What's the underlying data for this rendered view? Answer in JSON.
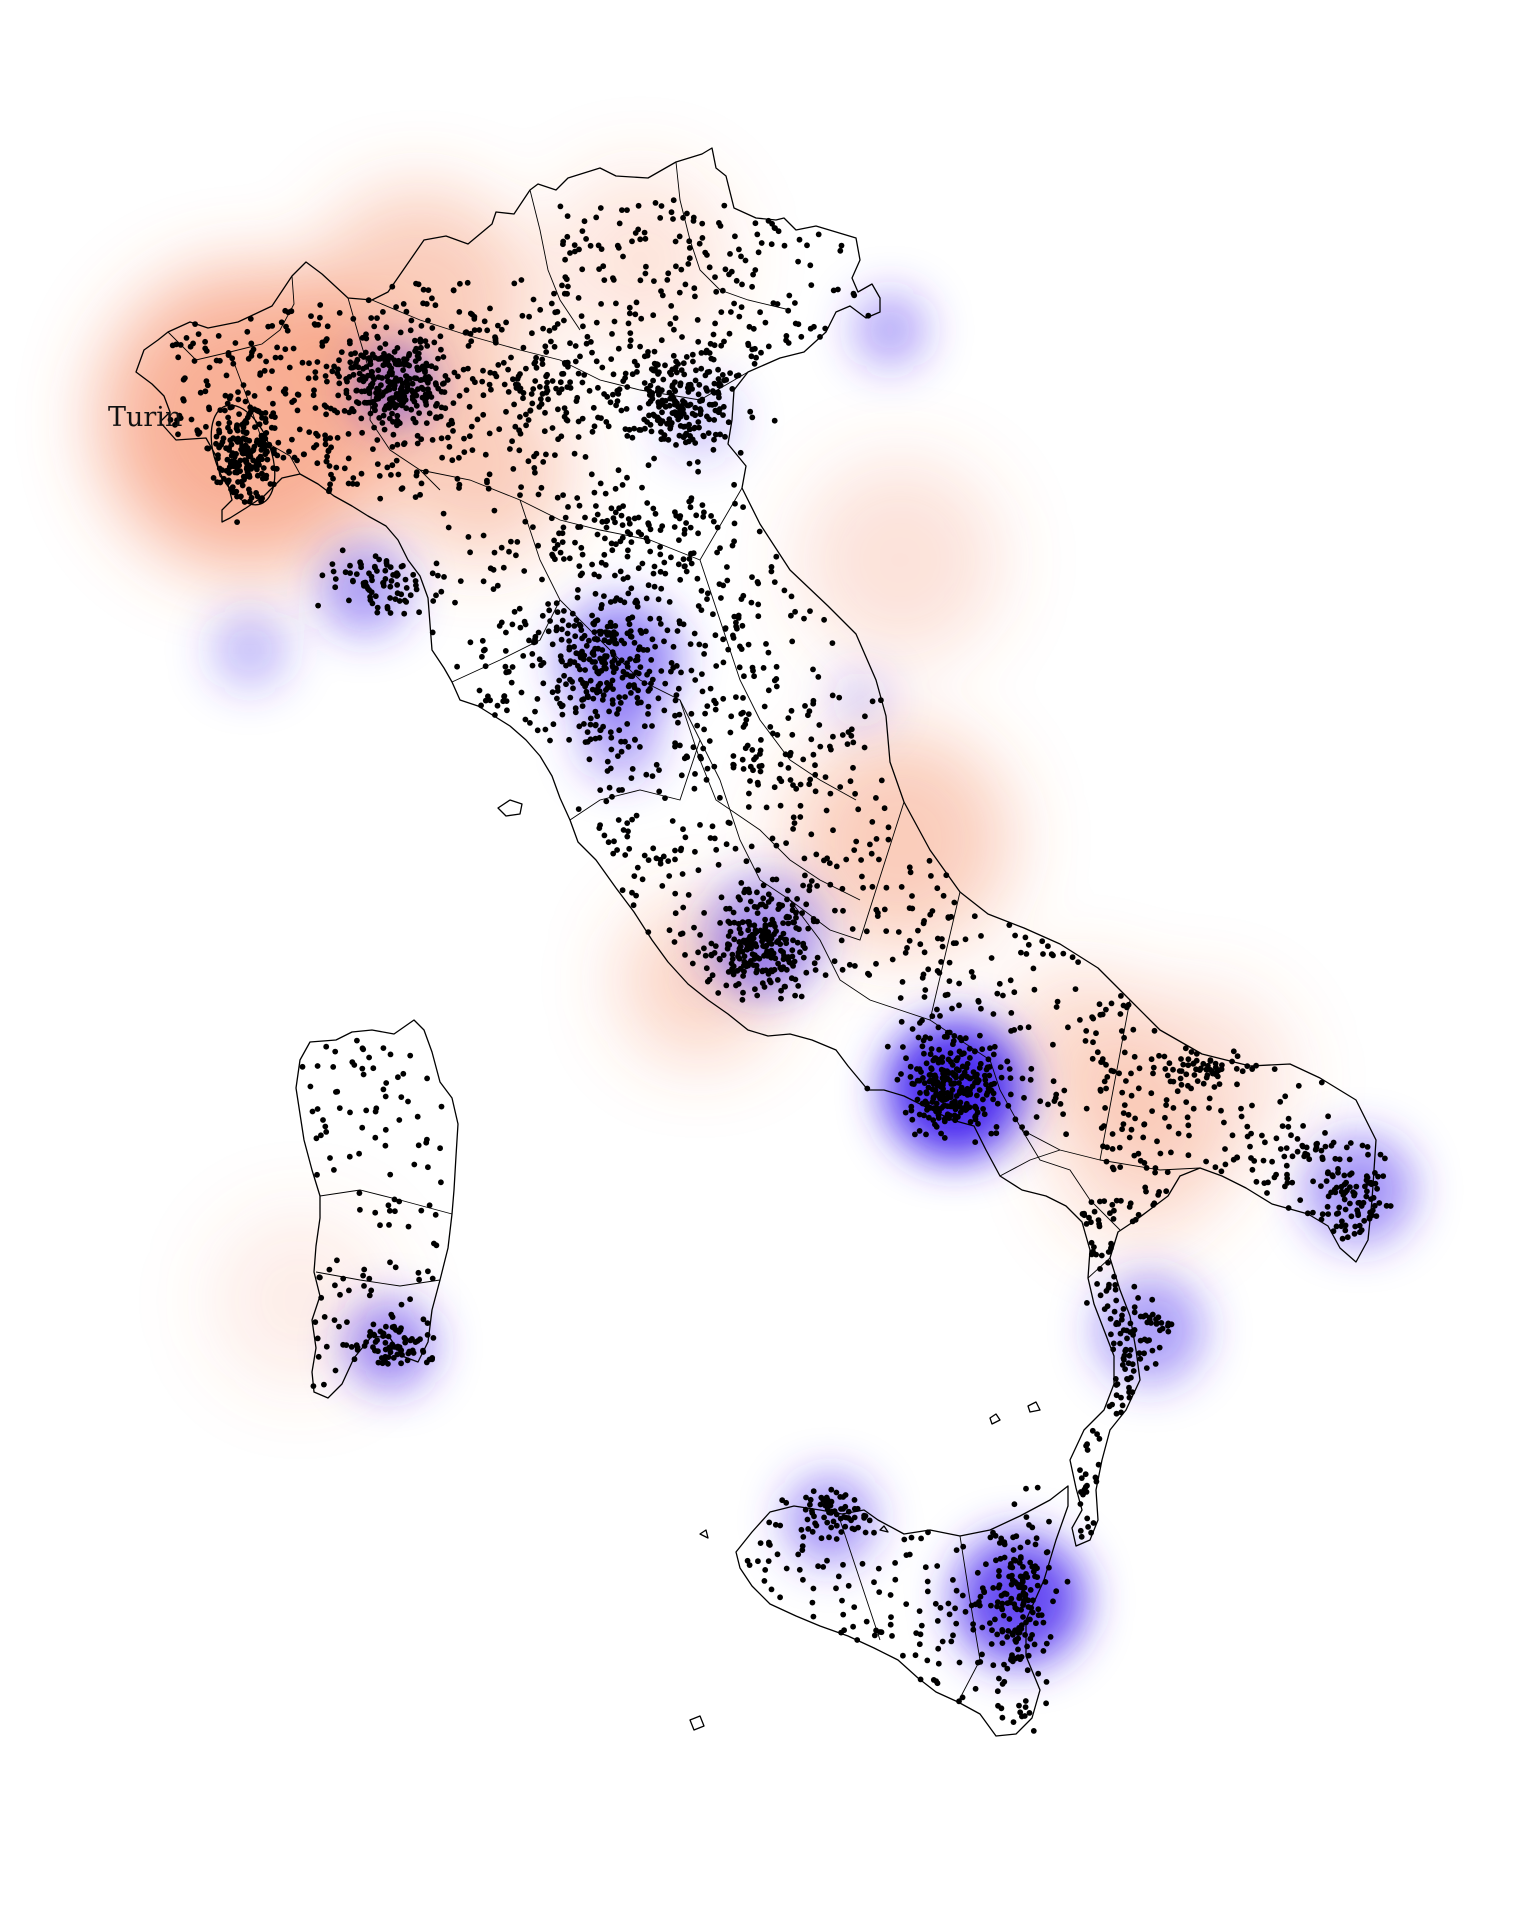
{
  "map": {
    "title": "",
    "labels": {
      "turin": "Turin"
    },
    "colors": {
      "overdensity": "#f2703f",
      "underdensity": "#4a2bf0",
      "dots": "#000000",
      "borders": "#000000",
      "background": "#ffffff"
    },
    "legend": null
  }
}
